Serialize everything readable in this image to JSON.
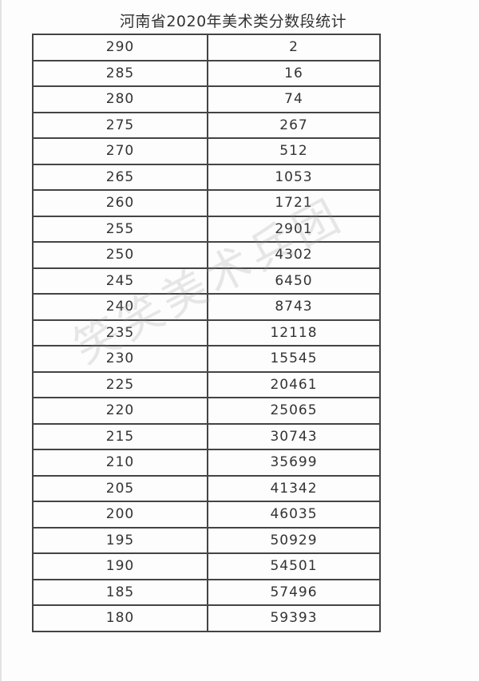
{
  "title": "河南省2020年美术类分数段统计",
  "watermark": "笑笑美术兵团",
  "rows": [
    [
      "290",
      "2"
    ],
    [
      "285",
      "16"
    ],
    [
      "280",
      "74"
    ],
    [
      "275",
      "267"
    ],
    [
      "270",
      "512"
    ],
    [
      "265",
      "1053"
    ],
    [
      "260",
      "1721"
    ],
    [
      "255",
      "2901"
    ],
    [
      "250",
      "4302"
    ],
    [
      "245",
      "6450"
    ],
    [
      "240",
      "8743"
    ],
    [
      "235",
      "12118"
    ],
    [
      "230",
      "15545"
    ],
    [
      "225",
      "20461"
    ],
    [
      "220",
      "25065"
    ],
    [
      "215",
      "30743"
    ],
    [
      "210",
      "35699"
    ],
    [
      "205",
      "41342"
    ],
    [
      "200",
      "46035"
    ],
    [
      "195",
      "50929"
    ],
    [
      "190",
      "54501"
    ],
    [
      "185",
      "57496"
    ],
    [
      "180",
      "59393"
    ]
  ]
}
